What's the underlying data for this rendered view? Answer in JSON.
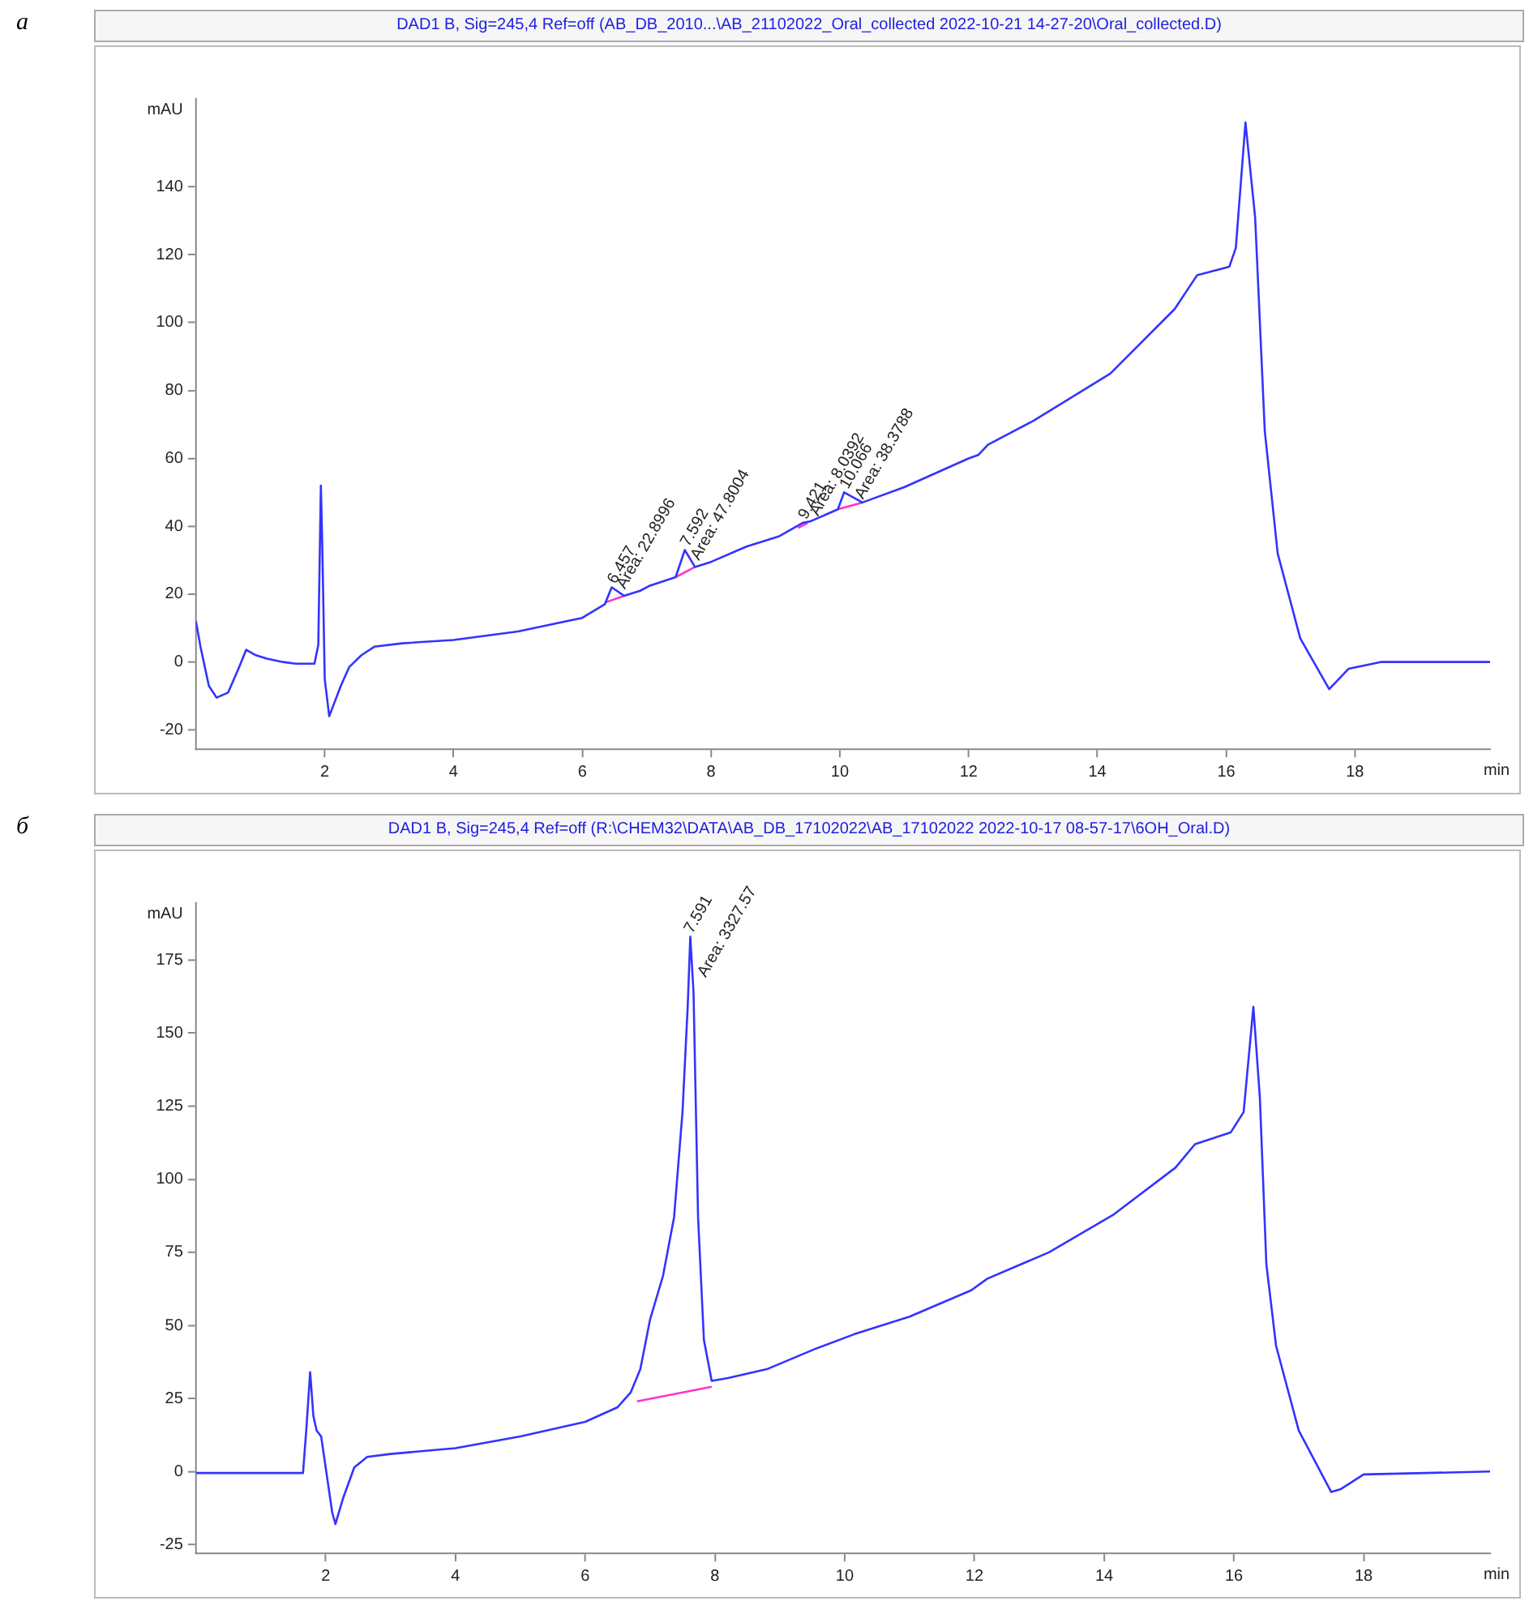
{
  "chart_data": [
    {
      "type": "line",
      "title": "DAD1 B, Sig=245,4 Ref=off (AB_DB_2010...\\AB_21102022_Oral_collected 2022-10-21 14-27-20\\Oral_collected.D)",
      "xlabel": "min",
      "ylabel": "mAU",
      "annotations": [
        "а",
        {
          "text": "6.457",
          "x": 6.457,
          "y": 22
        },
        {
          "text": "Area: 22.8996",
          "x": 6.6,
          "y": 20.5
        },
        {
          "text": "7.592",
          "x": 7.592,
          "y": 33
        },
        {
          "text": "Area: 47.8004",
          "x": 7.75,
          "y": 29
        },
        {
          "text": "9.421",
          "x": 9.421,
          "y": 41
        },
        {
          "text": "Area: 8.0392",
          "x": 9.6,
          "y": 42
        },
        {
          "text": "10.066",
          "x": 10.066,
          "y": 50
        },
        {
          "text": "Area: 38.3788",
          "x": 10.3,
          "y": 47
        }
      ],
      "series": [
        {
          "color": "#3333ff",
          "x": [
            0,
            0.07,
            0.2,
            0.32,
            0.5,
            0.66,
            0.78,
            0.93,
            1.1,
            1.35,
            1.55,
            1.84,
            1.9,
            1.94,
            1.96,
            2.0,
            2.07,
            2.12,
            2.25,
            2.38,
            2.57,
            2.77,
            3.2,
            4,
            5,
            6,
            6.35,
            6.457,
            6.65,
            6.9,
            7.05,
            7.45,
            7.592,
            7.75,
            8,
            8.55,
            9.05,
            9.421,
            9.55,
            9.97,
            10.066,
            10.35,
            11,
            12,
            12.15,
            12.3,
            13,
            14.2,
            15.2,
            15.55,
            16.05,
            16.15,
            16.3,
            16.45,
            16.6,
            16.8,
            17.15,
            17.6,
            17.9,
            18.4,
            20.1
          ],
          "values": [
            12,
            4.5,
            -7,
            -10.5,
            -9,
            -2,
            3.6,
            2,
            1,
            0,
            -0.5,
            -0.5,
            5,
            52,
            36,
            -5,
            -16,
            -13.5,
            -7,
            -1.5,
            2,
            4.5,
            5.5,
            6.5,
            9,
            13,
            17,
            22,
            19.5,
            21,
            22.5,
            25,
            33,
            28,
            29.5,
            34,
            37,
            41,
            41.5,
            45,
            50,
            47,
            51.5,
            60,
            61,
            64,
            71,
            85,
            104,
            114,
            116.5,
            122,
            159,
            131,
            68,
            32,
            7,
            -8,
            -2,
            0,
            0
          ]
        },
        {
          "color": "#ff33cc",
          "x": [
            6.35,
            6.65
          ],
          "values": [
            17.5,
            19.5
          ]
        },
        {
          "color": "#ff33cc",
          "x": [
            7.45,
            7.75
          ],
          "values": [
            25,
            28
          ]
        },
        {
          "color": "#ff33cc",
          "x": [
            9.35,
            9.5
          ],
          "values": [
            39.5,
            41
          ]
        },
        {
          "color": "#ff33cc",
          "x": [
            9.97,
            10.35
          ],
          "values": [
            45,
            47
          ]
        }
      ],
      "xlim": [
        0,
        20.1
      ],
      "ylim": [
        -25.7,
        166
      ],
      "xticks": [
        2,
        4,
        6,
        8,
        10,
        12,
        14,
        16,
        18
      ],
      "yticks": [
        -20,
        0,
        20,
        40,
        60,
        80,
        100,
        120,
        140
      ],
      "grid": false,
      "legend": false,
      "marker": "none",
      "line_style": "solid"
    },
    {
      "type": "line",
      "title": "DAD1 B, Sig=245,4 Ref=off (R:\\CHEM32\\DATA\\AB_DB_17102022\\AB_17102022 2022-10-17 08-57-17\\6OH_Oral.D)",
      "xlabel": "min",
      "ylabel": "mAU",
      "annotations": [
        "б",
        {
          "text": "7.591",
          "x": 7.591,
          "y": 183
        },
        {
          "text": "Area: 3327.57",
          "x": 7.8,
          "y": 168
        }
      ],
      "series": [
        {
          "color": "#3333ff",
          "x": [
            0,
            1.65,
            1.7,
            1.76,
            1.81,
            1.86,
            1.93,
            2.1,
            2.15,
            2.27,
            2.44,
            2.64,
            3,
            4,
            5,
            6,
            6.5,
            6.7,
            6.85,
            7.0,
            7.2,
            7.37,
            7.5,
            7.58,
            7.62,
            7.67,
            7.74,
            7.83,
            7.95,
            8.2,
            8.8,
            9.55,
            10.15,
            11,
            11.95,
            12.2,
            13.15,
            14.15,
            15.1,
            15.4,
            15.95,
            16.15,
            16.3,
            16.4,
            16.5,
            16.65,
            17.0,
            17.5,
            17.65,
            18,
            19.95
          ],
          "values": [
            -0.5,
            -0.5,
            14,
            34,
            19,
            14,
            12,
            -14,
            -18,
            -9,
            1.4,
            5,
            6,
            8,
            12,
            17,
            22,
            27,
            35,
            52,
            67,
            87,
            123,
            159,
            183,
            164,
            87,
            45,
            31,
            32,
            35,
            42,
            47,
            53,
            62,
            66,
            75,
            88,
            104,
            112,
            116,
            123,
            159,
            128,
            71,
            43,
            14,
            -7,
            -6,
            -1,
            0
          ]
        },
        {
          "color": "#ff33cc",
          "x": [
            6.8,
            7.95
          ],
          "values": [
            24,
            29
          ]
        }
      ],
      "xlim": [
        0,
        19.95
      ],
      "ylim": [
        -28,
        194.6
      ],
      "xticks": [
        2,
        4,
        6,
        8,
        10,
        12,
        14,
        16,
        18
      ],
      "yticks": [
        -25,
        0,
        25,
        50,
        75,
        100,
        125,
        150,
        175
      ],
      "grid": false,
      "legend": false,
      "marker": "none",
      "line_style": "solid"
    }
  ]
}
